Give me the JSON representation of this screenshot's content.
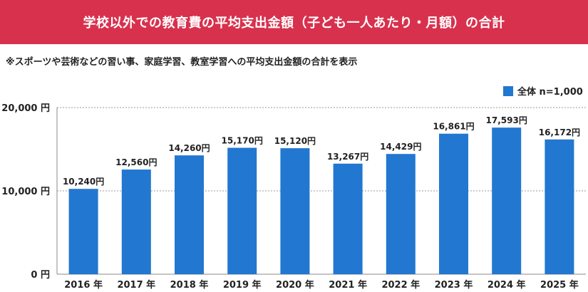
{
  "header": {
    "title": "学校以外での教育費の平均支出金額（子ども一人あたり・月額）の合計"
  },
  "note": "※スポーツや芸術などの習い事、家庭学習、教室学習への平均支出金額の合計を表示",
  "colors": {
    "banner": "#d8314d",
    "bar": "#2277d0"
  },
  "chart_data": {
    "type": "bar",
    "categories": [
      "2016 年",
      "2017 年",
      "2018 年",
      "2019 年",
      "2020 年",
      "2021 年",
      "2022 年",
      "2023 年",
      "2024 年",
      "2025 年"
    ],
    "series": [
      {
        "name": "全体 n=1,000",
        "values": [
          10240,
          12560,
          14260,
          15170,
          15120,
          13267,
          14429,
          16861,
          17593,
          16172
        ],
        "labels": [
          "10,240円",
          "12,560円",
          "14,260円",
          "15,170円",
          "15,120円",
          "13,267円",
          "14,429円",
          "16,861円",
          "17,593円",
          "16,172円"
        ]
      }
    ],
    "ylim": [
      0,
      20000
    ],
    "yticks": [
      0,
      10000,
      20000
    ],
    "ytick_labels": [
      "0 円",
      "10,000 円",
      "20,000 円"
    ],
    "grid": true,
    "legend_position": "top-right"
  }
}
